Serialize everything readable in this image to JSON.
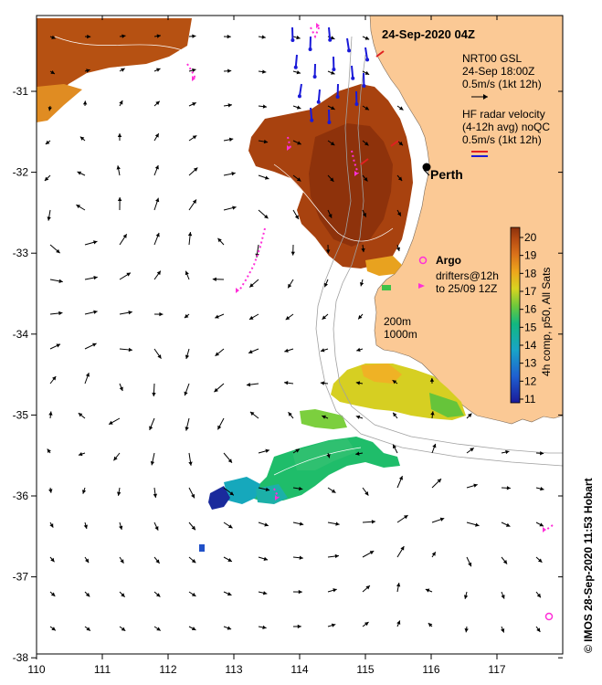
{
  "title": "24-Sep-2020 04Z",
  "legend": {
    "model": {
      "line1": "NRT00 GSL",
      "line2": "24-Sep 18:00Z",
      "line3": "0.5m/s (1kt 12h)"
    },
    "radar": {
      "line1": "HF radar velocity",
      "line2": "(4-12h avg) noQC",
      "line3": "0.5m/s (1kt 12h)"
    },
    "argo": {
      "title": "Argo",
      "line1": "drifters@12h",
      "line2": "to 25/09 12Z"
    }
  },
  "annotations": {
    "city": "Perth",
    "isobath_200": "200m",
    "isobath_1000": "1000m"
  },
  "colorbar": {
    "label": "4h comp, p50, All Sats",
    "min": 11,
    "max": 20,
    "ticks": [
      "11",
      "12",
      "13",
      "14",
      "15",
      "16",
      "17",
      "18",
      "19",
      "20"
    ]
  },
  "credit": "© IMOS 28-Sep-2020 11:53 Hobart",
  "axes": {
    "x_ticks": [
      "110",
      "111",
      "112",
      "113",
      "114",
      "115",
      "116",
      "117"
    ],
    "y_ticks": [
      "-31",
      "-32",
      "-33",
      "-34",
      "-35",
      "-36",
      "-37",
      "-38"
    ]
  },
  "colors": {
    "land": "#fbc995",
    "radar_red": "#e02020",
    "radar_blue": "#1a1ad8",
    "drifter": "#ff2fd8"
  }
}
